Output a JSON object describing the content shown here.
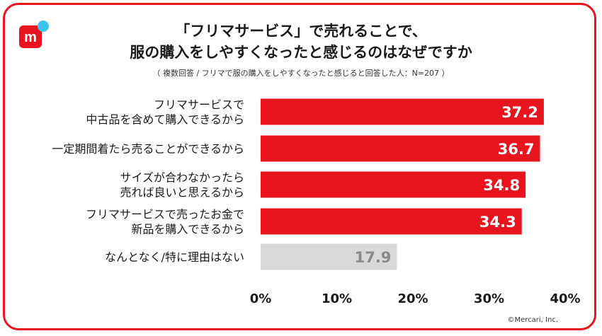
{
  "title_line1": "「フリマサービス」で売れることで、",
  "title_line2": "服の購入をしやすくなったと感じるのはなぜですか",
  "subtitle": "（ 複数回答 / フリマで服の購入をしやすくなったと感じると回答した人：N=207 ）",
  "copyright": "©Mercari, Inc.",
  "logo_letter": "m",
  "colors": {
    "accent": "#e8141e",
    "muted_bar": "#d9d9d9",
    "muted_label": "#8a8a8a",
    "dot": "#3cc3ee"
  },
  "chart_data": {
    "type": "bar",
    "orientation": "horizontal",
    "categories": [
      [
        "フリマサービスで",
        "中古品を含めて購入できるから"
      ],
      [
        "一定期間着たら売ることができるから"
      ],
      [
        "サイズが合わなかったら",
        "売れば良いと思えるから"
      ],
      [
        "フリマサービスで売ったお金で",
        "新品を購入できるから"
      ],
      [
        "なんとなく/特に理由はない"
      ]
    ],
    "values": [
      37.2,
      36.7,
      34.8,
      34.3,
      17.9
    ],
    "value_labels": [
      "37.2",
      "36.7",
      "34.8",
      "34.3",
      "17.9"
    ],
    "xlim": [
      0,
      40
    ],
    "ticks": [
      "0%",
      "10%",
      "20%",
      "30%",
      "40%"
    ],
    "grid": false
  }
}
